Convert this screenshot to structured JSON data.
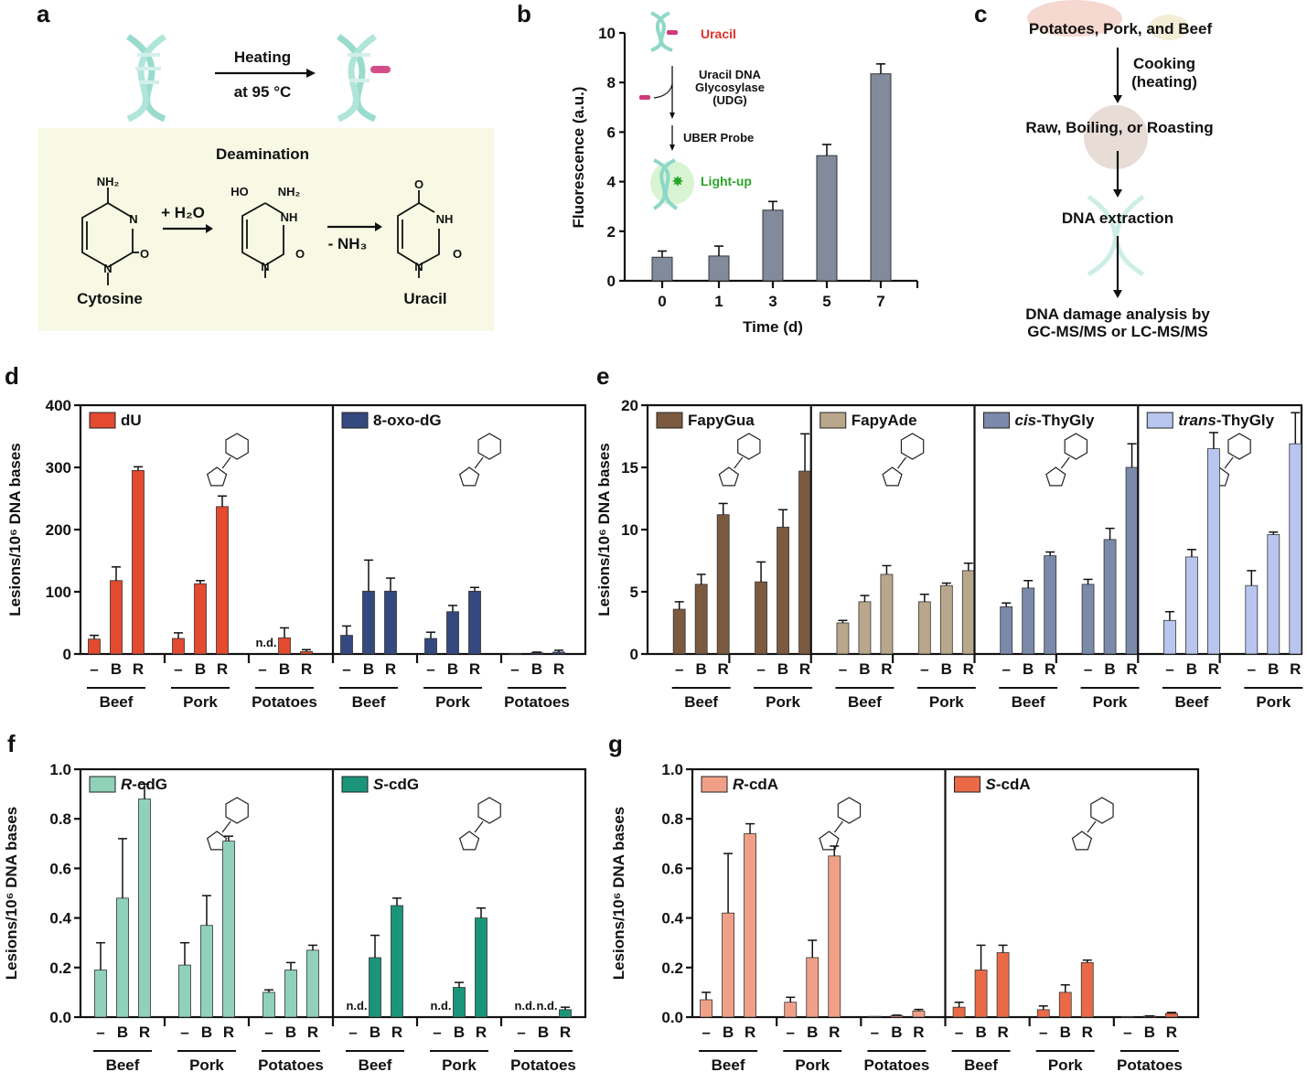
{
  "panels": {
    "a": {
      "label": "a",
      "heating": "Heating",
      "temperature": "at 95 °C",
      "deamination": "Deamination",
      "reagent": "+ H₂O",
      "byproduct": "- NH₃",
      "cytosine": "Cytosine",
      "uracil": "Uracil",
      "atoms": {
        "cyt_nh2": "NH₂",
        "cyt_n3": "N",
        "cyt_o": "O",
        "cyt_n1": "N",
        "int_ho": "HO",
        "int_nh2": "NH₂",
        "int_nh": "NH",
        "int_o": "O",
        "int_n1": "N",
        "ura_o4": "O",
        "ura_nh": "NH",
        "ura_o2": "O",
        "ura_n1": "N"
      },
      "colors": {
        "dna": "#8fd8c8",
        "lesion": "#d13a7c",
        "box": "#f7f9e4"
      }
    },
    "b": {
      "label": "b",
      "inset": {
        "uracil": "Uracil",
        "enzyme_line1": "Uracil DNA",
        "enzyme_line2": "Glycosylase",
        "enzyme_line3": "(UDG)",
        "probe": "UBER Probe",
        "lightup": "Light-up",
        "uracil_color": "#e0302a",
        "lightup_color": "#2aa52a"
      }
    },
    "c": {
      "label": "c",
      "steps": [
        "Potatoes, Pork, and Beef",
        "Raw, Boiling, or Roasting",
        "DNA extraction",
        "DNA damage analysis by",
        "GC-MS/MS or LC-MS/MS"
      ],
      "cooking_line1": "Cooking",
      "cooking_line2": "(heating)"
    },
    "d": {
      "label": "d"
    },
    "e": {
      "label": "e"
    },
    "f": {
      "label": "f"
    },
    "g": {
      "label": "g"
    }
  },
  "chart_data": [
    {
      "panel": "b",
      "type": "bar",
      "categories": [
        "0",
        "1",
        "3",
        "5",
        "7"
      ],
      "values": [
        0.95,
        1.0,
        2.85,
        5.05,
        8.35
      ],
      "errors": [
        0.25,
        0.4,
        0.35,
        0.45,
        0.4
      ],
      "xlabel": "Time (d)",
      "ylabel": "Fluorescence (a.u.)",
      "ylim": [
        0,
        10
      ],
      "yticks": [
        "0",
        "2",
        "4",
        "6",
        "8",
        "10"
      ],
      "color": "#818b9b",
      "grid": false
    },
    {
      "panel": "d",
      "type": "bar",
      "ylabel": "Lesions/10⁶ DNA bases",
      "ylim": [
        0,
        400
      ],
      "yticks": [
        "0",
        "100",
        "200",
        "300",
        "400"
      ],
      "treatments": [
        "–",
        "B",
        "R"
      ],
      "nd_label": "n.d.",
      "grid": false,
      "series": [
        {
          "name": "dU",
          "italic_prefix": "",
          "color": "#e34a2f",
          "groups": [
            {
              "label": "Beef",
              "values": [
                24,
                118,
                295
              ],
              "errors": [
                6,
                22,
                6
              ]
            },
            {
              "label": "Pork",
              "values": [
                25,
                113,
                237
              ],
              "errors": [
                9,
                5,
                17
              ]
            },
            {
              "label": "Potatoes",
              "values": [
                null,
                26,
                4
              ],
              "errors": [
                0,
                16,
                3
              ]
            }
          ]
        },
        {
          "name": "8-oxo-dG",
          "italic_prefix": "",
          "color": "#34497f",
          "groups": [
            {
              "label": "Beef",
              "values": [
                30,
                101,
                101
              ],
              "errors": [
                15,
                50,
                21
              ]
            },
            {
              "label": "Pork",
              "values": [
                25,
                68,
                101
              ],
              "errors": [
                10,
                10,
                6
              ]
            },
            {
              "label": "Potatoes",
              "values": [
                0.5,
                2,
                3
              ],
              "errors": [
                0,
                1,
                3
              ]
            }
          ]
        }
      ]
    },
    {
      "panel": "e",
      "type": "bar",
      "ylabel": "Lesions/10⁶ DNA bases",
      "ylim": [
        0,
        20
      ],
      "yticks": [
        "0",
        "5",
        "10",
        "15",
        "20"
      ],
      "treatments": [
        "–",
        "B",
        "R"
      ],
      "grid": false,
      "series": [
        {
          "name": "FapyGua",
          "italic_prefix": "",
          "color": "#7b5a3f",
          "groups": [
            {
              "label": "Beef",
              "values": [
                3.6,
                5.6,
                11.2
              ],
              "errors": [
                0.6,
                0.8,
                0.9
              ]
            },
            {
              "label": "Pork",
              "values": [
                5.8,
                10.2,
                14.7
              ],
              "errors": [
                1.6,
                1.4,
                3.0
              ]
            }
          ]
        },
        {
          "name": "FapyAde",
          "italic_prefix": "",
          "color": "#b9a78b",
          "groups": [
            {
              "label": "Beef",
              "values": [
                2.5,
                4.2,
                6.4
              ],
              "errors": [
                0.2,
                0.5,
                0.7
              ]
            },
            {
              "label": "Pork",
              "values": [
                4.2,
                5.5,
                6.7
              ],
              "errors": [
                0.6,
                0.2,
                0.6
              ]
            }
          ]
        },
        {
          "name": "-ThyGly",
          "italic_prefix": "cis",
          "color": "#7b89aa",
          "groups": [
            {
              "label": "Beef",
              "values": [
                3.8,
                5.3,
                7.9
              ],
              "errors": [
                0.3,
                0.6,
                0.3
              ]
            },
            {
              "label": "Pork",
              "values": [
                5.6,
                9.2,
                15.0
              ],
              "errors": [
                0.4,
                0.9,
                1.9
              ]
            }
          ]
        },
        {
          "name": "-ThyGly",
          "italic_prefix": "trans",
          "color": "#b8c6ef",
          "groups": [
            {
              "label": "Beef",
              "values": [
                2.7,
                7.8,
                16.5
              ],
              "errors": [
                0.7,
                0.6,
                1.3
              ]
            },
            {
              "label": "Pork",
              "values": [
                5.5,
                9.6,
                16.9
              ],
              "errors": [
                1.2,
                0.2,
                2.5
              ]
            }
          ]
        }
      ]
    },
    {
      "panel": "f",
      "type": "bar",
      "ylabel": "Lesions/10⁶ DNA bases",
      "ylim": [
        0,
        1.0
      ],
      "yticks": [
        "0.0",
        "0.2",
        "0.4",
        "0.6",
        "0.8",
        "1.0"
      ],
      "treatments": [
        "–",
        "B",
        "R"
      ],
      "nd_label": "n.d.",
      "grid": false,
      "series": [
        {
          "name": "-cdG",
          "italic_prefix": "R",
          "color": "#90d2b9",
          "groups": [
            {
              "label": "Beef",
              "values": [
                0.19,
                0.48,
                0.88
              ],
              "errors": [
                0.11,
                0.24,
                0.06
              ]
            },
            {
              "label": "Pork",
              "values": [
                0.21,
                0.37,
                0.71
              ],
              "errors": [
                0.09,
                0.12,
                0.02
              ]
            },
            {
              "label": "Potatoes",
              "values": [
                0.1,
                0.19,
                0.27
              ],
              "errors": [
                0.01,
                0.03,
                0.02
              ]
            }
          ]
        },
        {
          "name": "-cdG",
          "italic_prefix": "S",
          "color": "#1b957a",
          "groups": [
            {
              "label": "Beef",
              "values": [
                null,
                0.24,
                0.45
              ],
              "errors": [
                0,
                0.09,
                0.03
              ]
            },
            {
              "label": "Pork",
              "values": [
                null,
                0.12,
                0.4
              ],
              "errors": [
                0,
                0.02,
                0.04
              ]
            },
            {
              "label": "Potatoes",
              "values": [
                null,
                null,
                0.03
              ],
              "errors": [
                0,
                0,
                0.01
              ]
            }
          ]
        }
      ]
    },
    {
      "panel": "g",
      "type": "bar",
      "ylabel": "Lesions/10⁶ DNA bases",
      "ylim": [
        0,
        1.0
      ],
      "yticks": [
        "0.0",
        "0.2",
        "0.4",
        "0.6",
        "0.8",
        "1.0"
      ],
      "treatments": [
        "–",
        "B",
        "R"
      ],
      "grid": false,
      "series": [
        {
          "name": "-cdA",
          "italic_prefix": "R",
          "color": "#f1a088",
          "groups": [
            {
              "label": "Beef",
              "values": [
                0.07,
                0.42,
                0.74
              ],
              "errors": [
                0.03,
                0.24,
                0.04
              ]
            },
            {
              "label": "Pork",
              "values": [
                0.06,
                0.24,
                0.65
              ],
              "errors": [
                0.02,
                0.07,
                0.04
              ]
            },
            {
              "label": "Potatoes",
              "values": [
                0.003,
                0.006,
                0.025
              ],
              "errors": [
                0,
                0.002,
                0.006
              ]
            }
          ]
        },
        {
          "name": "-cdA",
          "italic_prefix": "S",
          "color": "#ea6a47",
          "groups": [
            {
              "label": "Beef",
              "values": [
                0.04,
                0.19,
                0.26
              ],
              "errors": [
                0.02,
                0.1,
                0.03
              ]
            },
            {
              "label": "Pork",
              "values": [
                0.03,
                0.1,
                0.22
              ],
              "errors": [
                0.015,
                0.03,
                0.01
              ]
            },
            {
              "label": "Potatoes",
              "values": [
                0.002,
                0.004,
                0.015
              ],
              "errors": [
                0,
                0.001,
                0.004
              ]
            }
          ]
        }
      ]
    }
  ]
}
